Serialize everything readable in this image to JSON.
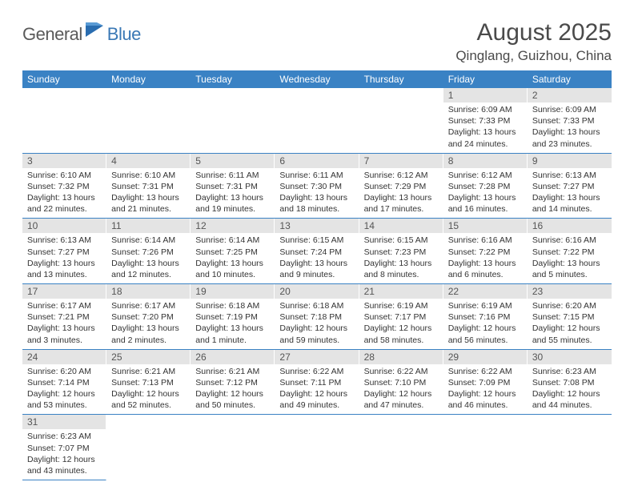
{
  "brand": {
    "part1": "General",
    "part2": "Blue"
  },
  "title": "August 2025",
  "location": "Qinglang, Guizhou, China",
  "colors": {
    "header_bg": "#3a82c4",
    "header_text": "#ffffff",
    "daynum_bg": "#e4e4e4",
    "daynum_text": "#555555",
    "body_text": "#333333",
    "rule": "#3a82c4",
    "brand_gray": "#5a5a5a",
    "brand_blue": "#3a78b5"
  },
  "day_names": [
    "Sunday",
    "Monday",
    "Tuesday",
    "Wednesday",
    "Thursday",
    "Friday",
    "Saturday"
  ],
  "weeks": [
    [
      null,
      null,
      null,
      null,
      null,
      {
        "n": "1",
        "sr": "Sunrise: 6:09 AM",
        "ss": "Sunset: 7:33 PM",
        "d1": "Daylight: 13 hours",
        "d2": "and 24 minutes."
      },
      {
        "n": "2",
        "sr": "Sunrise: 6:09 AM",
        "ss": "Sunset: 7:33 PM",
        "d1": "Daylight: 13 hours",
        "d2": "and 23 minutes."
      }
    ],
    [
      {
        "n": "3",
        "sr": "Sunrise: 6:10 AM",
        "ss": "Sunset: 7:32 PM",
        "d1": "Daylight: 13 hours",
        "d2": "and 22 minutes."
      },
      {
        "n": "4",
        "sr": "Sunrise: 6:10 AM",
        "ss": "Sunset: 7:31 PM",
        "d1": "Daylight: 13 hours",
        "d2": "and 21 minutes."
      },
      {
        "n": "5",
        "sr": "Sunrise: 6:11 AM",
        "ss": "Sunset: 7:31 PM",
        "d1": "Daylight: 13 hours",
        "d2": "and 19 minutes."
      },
      {
        "n": "6",
        "sr": "Sunrise: 6:11 AM",
        "ss": "Sunset: 7:30 PM",
        "d1": "Daylight: 13 hours",
        "d2": "and 18 minutes."
      },
      {
        "n": "7",
        "sr": "Sunrise: 6:12 AM",
        "ss": "Sunset: 7:29 PM",
        "d1": "Daylight: 13 hours",
        "d2": "and 17 minutes."
      },
      {
        "n": "8",
        "sr": "Sunrise: 6:12 AM",
        "ss": "Sunset: 7:28 PM",
        "d1": "Daylight: 13 hours",
        "d2": "and 16 minutes."
      },
      {
        "n": "9",
        "sr": "Sunrise: 6:13 AM",
        "ss": "Sunset: 7:27 PM",
        "d1": "Daylight: 13 hours",
        "d2": "and 14 minutes."
      }
    ],
    [
      {
        "n": "10",
        "sr": "Sunrise: 6:13 AM",
        "ss": "Sunset: 7:27 PM",
        "d1": "Daylight: 13 hours",
        "d2": "and 13 minutes."
      },
      {
        "n": "11",
        "sr": "Sunrise: 6:14 AM",
        "ss": "Sunset: 7:26 PM",
        "d1": "Daylight: 13 hours",
        "d2": "and 12 minutes."
      },
      {
        "n": "12",
        "sr": "Sunrise: 6:14 AM",
        "ss": "Sunset: 7:25 PM",
        "d1": "Daylight: 13 hours",
        "d2": "and 10 minutes."
      },
      {
        "n": "13",
        "sr": "Sunrise: 6:15 AM",
        "ss": "Sunset: 7:24 PM",
        "d1": "Daylight: 13 hours",
        "d2": "and 9 minutes."
      },
      {
        "n": "14",
        "sr": "Sunrise: 6:15 AM",
        "ss": "Sunset: 7:23 PM",
        "d1": "Daylight: 13 hours",
        "d2": "and 8 minutes."
      },
      {
        "n": "15",
        "sr": "Sunrise: 6:16 AM",
        "ss": "Sunset: 7:22 PM",
        "d1": "Daylight: 13 hours",
        "d2": "and 6 minutes."
      },
      {
        "n": "16",
        "sr": "Sunrise: 6:16 AM",
        "ss": "Sunset: 7:22 PM",
        "d1": "Daylight: 13 hours",
        "d2": "and 5 minutes."
      }
    ],
    [
      {
        "n": "17",
        "sr": "Sunrise: 6:17 AM",
        "ss": "Sunset: 7:21 PM",
        "d1": "Daylight: 13 hours",
        "d2": "and 3 minutes."
      },
      {
        "n": "18",
        "sr": "Sunrise: 6:17 AM",
        "ss": "Sunset: 7:20 PM",
        "d1": "Daylight: 13 hours",
        "d2": "and 2 minutes."
      },
      {
        "n": "19",
        "sr": "Sunrise: 6:18 AM",
        "ss": "Sunset: 7:19 PM",
        "d1": "Daylight: 13 hours",
        "d2": "and 1 minute."
      },
      {
        "n": "20",
        "sr": "Sunrise: 6:18 AM",
        "ss": "Sunset: 7:18 PM",
        "d1": "Daylight: 12 hours",
        "d2": "and 59 minutes."
      },
      {
        "n": "21",
        "sr": "Sunrise: 6:19 AM",
        "ss": "Sunset: 7:17 PM",
        "d1": "Daylight: 12 hours",
        "d2": "and 58 minutes."
      },
      {
        "n": "22",
        "sr": "Sunrise: 6:19 AM",
        "ss": "Sunset: 7:16 PM",
        "d1": "Daylight: 12 hours",
        "d2": "and 56 minutes."
      },
      {
        "n": "23",
        "sr": "Sunrise: 6:20 AM",
        "ss": "Sunset: 7:15 PM",
        "d1": "Daylight: 12 hours",
        "d2": "and 55 minutes."
      }
    ],
    [
      {
        "n": "24",
        "sr": "Sunrise: 6:20 AM",
        "ss": "Sunset: 7:14 PM",
        "d1": "Daylight: 12 hours",
        "d2": "and 53 minutes."
      },
      {
        "n": "25",
        "sr": "Sunrise: 6:21 AM",
        "ss": "Sunset: 7:13 PM",
        "d1": "Daylight: 12 hours",
        "d2": "and 52 minutes."
      },
      {
        "n": "26",
        "sr": "Sunrise: 6:21 AM",
        "ss": "Sunset: 7:12 PM",
        "d1": "Daylight: 12 hours",
        "d2": "and 50 minutes."
      },
      {
        "n": "27",
        "sr": "Sunrise: 6:22 AM",
        "ss": "Sunset: 7:11 PM",
        "d1": "Daylight: 12 hours",
        "d2": "and 49 minutes."
      },
      {
        "n": "28",
        "sr": "Sunrise: 6:22 AM",
        "ss": "Sunset: 7:10 PM",
        "d1": "Daylight: 12 hours",
        "d2": "and 47 minutes."
      },
      {
        "n": "29",
        "sr": "Sunrise: 6:22 AM",
        "ss": "Sunset: 7:09 PM",
        "d1": "Daylight: 12 hours",
        "d2": "and 46 minutes."
      },
      {
        "n": "30",
        "sr": "Sunrise: 6:23 AM",
        "ss": "Sunset: 7:08 PM",
        "d1": "Daylight: 12 hours",
        "d2": "and 44 minutes."
      }
    ],
    [
      {
        "n": "31",
        "sr": "Sunrise: 6:23 AM",
        "ss": "Sunset: 7:07 PM",
        "d1": "Daylight: 12 hours",
        "d2": "and 43 minutes."
      },
      null,
      null,
      null,
      null,
      null,
      null
    ]
  ]
}
